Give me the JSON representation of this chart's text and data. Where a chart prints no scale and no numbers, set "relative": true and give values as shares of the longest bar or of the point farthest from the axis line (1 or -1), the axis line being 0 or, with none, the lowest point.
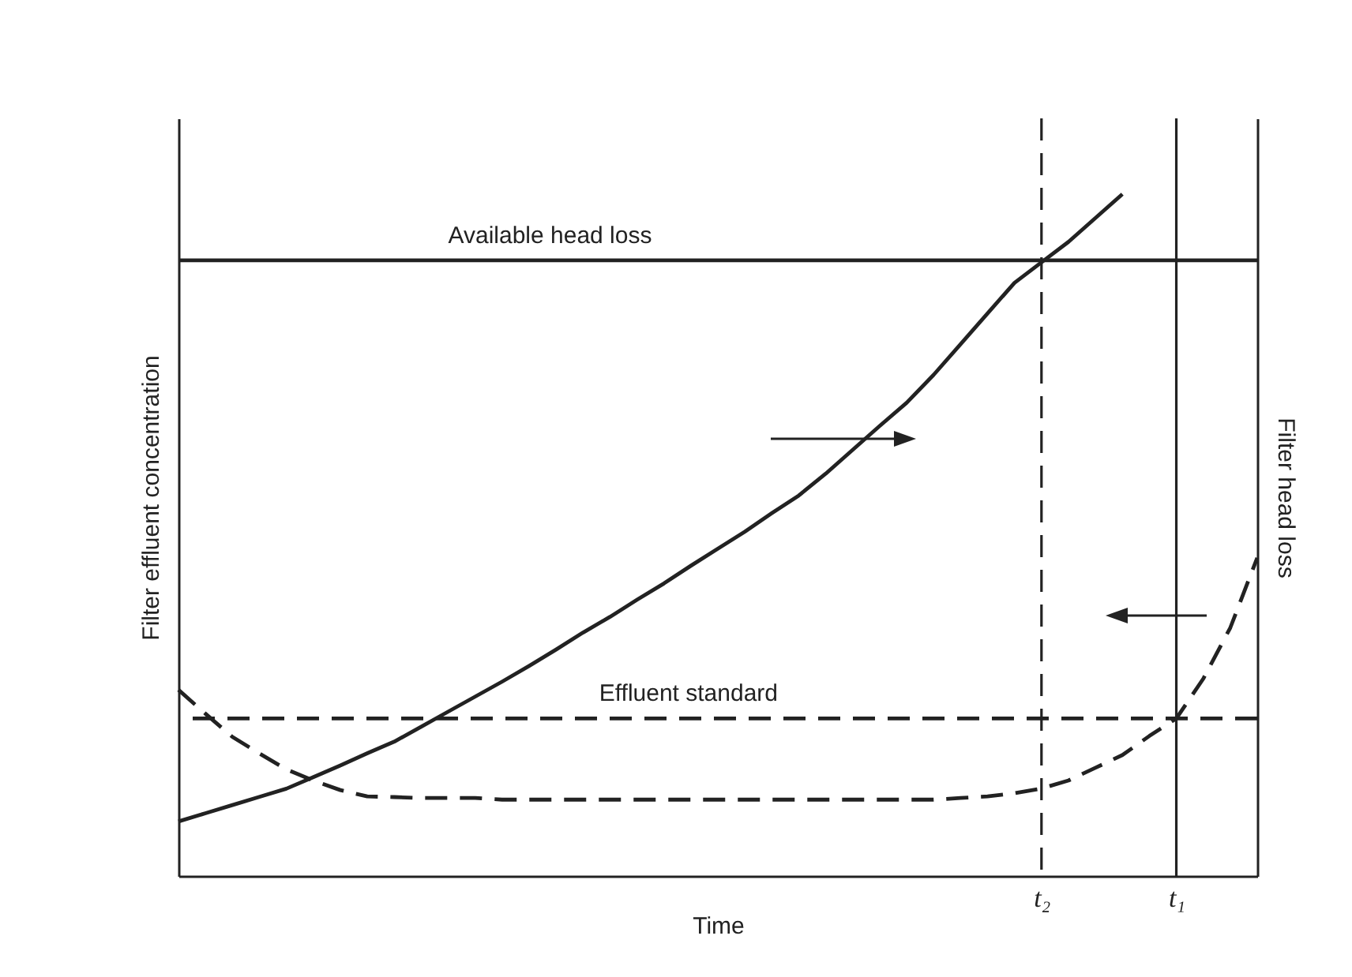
{
  "chart_data": {
    "type": "line",
    "relative": true,
    "xlabel": "Time",
    "ylabel": "Filter effluent concentration",
    "y2label": "Filter head loss",
    "categories": [
      null,
      null,
      null,
      null,
      null,
      null,
      null,
      null,
      null,
      null,
      null,
      null,
      null,
      null,
      null,
      null,
      null,
      null,
      null,
      null,
      null,
      null,
      null,
      null,
      null,
      null,
      null,
      null,
      null,
      null,
      null,
      null,
      "t₂",
      null,
      null,
      null,
      null,
      "t₁",
      null,
      null,
      null
    ],
    "series": [
      {
        "color": "#222222",
        "line_style": "dashed",
        "values": [
          0.585,
          0.51,
          0.437,
          0.385,
          0.335,
          0.3,
          0.27,
          0.25,
          0.248,
          0.245,
          0.245,
          0.245,
          0.24,
          0.24,
          0.24,
          0.24,
          0.24,
          0.24,
          0.24,
          0.24,
          0.24,
          0.24,
          0.24,
          0.24,
          0.24,
          0.24,
          0.24,
          0.24,
          0.24,
          0.245,
          0.25,
          0.26,
          0.275,
          0.3,
          0.34,
          0.38,
          0.44,
          0.495,
          0.62,
          0.78,
          1.0
        ]
      },
      {
        "color": "#222222",
        "line_style": "solid",
        "axis": "y2",
        "values": [
          0.08,
          0.092,
          0.104,
          0.116,
          0.128,
          0.145,
          0.162,
          0.18,
          0.197,
          0.219,
          0.241,
          0.263,
          0.285,
          0.308,
          0.332,
          0.357,
          0.38,
          0.405,
          0.429,
          0.455,
          0.48,
          0.505,
          0.532,
          0.558,
          0.59,
          0.625,
          0.66,
          0.694,
          0.735,
          0.78,
          0.825,
          0.87,
          0.9,
          0.93,
          0.965,
          1.0,
          null,
          null,
          null,
          null,
          null
        ]
      }
    ],
    "ref_lines": [
      {
        "axis": "y",
        "value": 0.495,
        "label": "Effluent standard",
        "line_style": "dashed",
        "color": "#222222"
      },
      {
        "axis": "y2",
        "value": 0.903,
        "label": "Available head loss",
        "line_style": "solid",
        "color": "#222222"
      },
      {
        "axis": "x",
        "value": "t₂",
        "line_style": "dashed",
        "color": "#222222"
      },
      {
        "axis": "x",
        "value": "t₁",
        "line_style": "solid",
        "color": "#222222"
      }
    ]
  }
}
